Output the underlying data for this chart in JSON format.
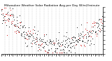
{
  "title": "Milwaukee Weather Solar Radiation Avg per Day W/m2/minute",
  "background_color": "#ffffff",
  "plot_bg_color": "#ffffff",
  "grid_color": "#aaaaaa",
  "num_points": 365,
  "x_min": 0,
  "x_max": 365,
  "y_min": 0,
  "y_max": 10,
  "title_fontsize": 3.2,
  "dot_size": 0.6,
  "black_color": "#000000",
  "red_color": "#cc0000",
  "vgrid_positions": [
    14,
    28,
    42,
    56,
    70,
    84,
    98,
    112,
    126,
    140,
    154,
    168,
    182,
    196,
    210,
    224,
    238,
    252,
    266,
    280,
    294,
    308,
    322,
    336,
    350,
    364
  ]
}
